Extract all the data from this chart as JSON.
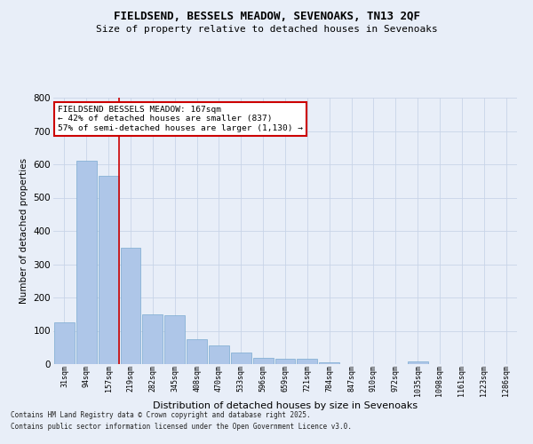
{
  "title1": "FIELDSEND, BESSELS MEADOW, SEVENOAKS, TN13 2QF",
  "title2": "Size of property relative to detached houses in Sevenoaks",
  "xlabel": "Distribution of detached houses by size in Sevenoaks",
  "ylabel": "Number of detached properties",
  "categories": [
    "31sqm",
    "94sqm",
    "157sqm",
    "219sqm",
    "282sqm",
    "345sqm",
    "408sqm",
    "470sqm",
    "533sqm",
    "596sqm",
    "659sqm",
    "721sqm",
    "784sqm",
    "847sqm",
    "910sqm",
    "972sqm",
    "1035sqm",
    "1098sqm",
    "1161sqm",
    "1223sqm",
    "1286sqm"
  ],
  "values": [
    125,
    610,
    565,
    350,
    150,
    148,
    75,
    55,
    35,
    20,
    15,
    15,
    5,
    0,
    0,
    0,
    8,
    0,
    0,
    0,
    0
  ],
  "bar_color": "#aec6e8",
  "bar_edge_color": "#7aaad0",
  "red_line_index": 2,
  "annotation_text": "FIELDSEND BESSELS MEADOW: 167sqm\n← 42% of detached houses are smaller (837)\n57% of semi-detached houses are larger (1,130) →",
  "annotation_box_color": "#ffffff",
  "annotation_box_edge": "#cc0000",
  "red_line_color": "#cc0000",
  "grid_color": "#c8d4e8",
  "background_color": "#e8eef8",
  "footer1": "Contains HM Land Registry data © Crown copyright and database right 2025.",
  "footer2": "Contains public sector information licensed under the Open Government Licence v3.0.",
  "ylim": [
    0,
    800
  ],
  "yticks": [
    0,
    100,
    200,
    300,
    400,
    500,
    600,
    700,
    800
  ]
}
